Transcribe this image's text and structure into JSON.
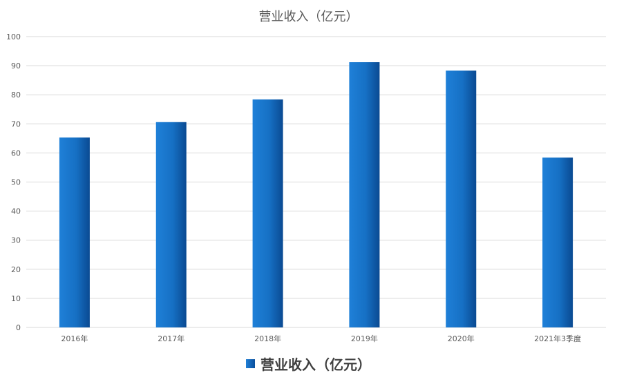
{
  "chart_data": {
    "type": "bar",
    "title": "营业收入（亿元）",
    "categories": [
      "2016年",
      "2017年",
      "2018年",
      "2019年",
      "2020年",
      "2021年3季度"
    ],
    "series": [
      {
        "name": "营业收入（亿元）",
        "values": [
          65.3,
          70.6,
          78.4,
          91.2,
          88.3,
          58.4
        ]
      }
    ],
    "ylim": [
      0,
      100
    ],
    "yticks": [
      0,
      10,
      20,
      30,
      40,
      50,
      60,
      70,
      80,
      90,
      100
    ],
    "grid": true,
    "legend_position": "bottom",
    "colors": {
      "bar_light": "#1f80d8",
      "bar_dark": "#0a4a92",
      "grid": "#d9d9d9",
      "text": "#595959"
    }
  }
}
